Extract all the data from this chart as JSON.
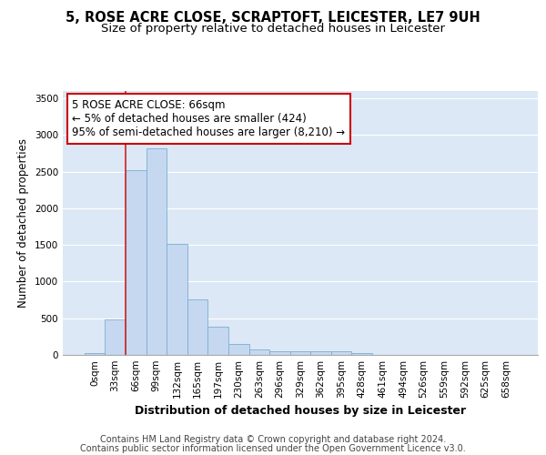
{
  "title1": "5, ROSE ACRE CLOSE, SCRAPTOFT, LEICESTER, LE7 9UH",
  "title2": "Size of property relative to detached houses in Leicester",
  "xlabel": "Distribution of detached houses by size in Leicester",
  "ylabel": "Number of detached properties",
  "categories": [
    "0sqm",
    "33sqm",
    "66sqm",
    "99sqm",
    "132sqm",
    "165sqm",
    "197sqm",
    "230sqm",
    "263sqm",
    "296sqm",
    "329sqm",
    "362sqm",
    "395sqm",
    "428sqm",
    "461sqm",
    "494sqm",
    "526sqm",
    "559sqm",
    "592sqm",
    "625sqm",
    "658sqm"
  ],
  "values": [
    25,
    490,
    2520,
    2820,
    1520,
    755,
    390,
    145,
    80,
    55,
    55,
    55,
    55,
    20,
    0,
    0,
    0,
    0,
    0,
    0,
    0
  ],
  "bar_color": "#c5d8f0",
  "bar_edge_color": "#7aadd4",
  "red_line_index": 2,
  "annotation_line1": "5 ROSE ACRE CLOSE: 66sqm",
  "annotation_line2": "← 5% of detached houses are smaller (424)",
  "annotation_line3": "95% of semi-detached houses are larger (8,210) →",
  "annotation_box_color": "#ffffff",
  "annotation_box_edge": "#cc0000",
  "ylim": [
    0,
    3600
  ],
  "yticks": [
    0,
    500,
    1000,
    1500,
    2000,
    2500,
    3000,
    3500
  ],
  "bg_color": "#dce8f5",
  "grid_color": "#ffffff",
  "footer1": "Contains HM Land Registry data © Crown copyright and database right 2024.",
  "footer2": "Contains public sector information licensed under the Open Government Licence v3.0.",
  "title1_fontsize": 10.5,
  "title2_fontsize": 9.5,
  "xlabel_fontsize": 9,
  "ylabel_fontsize": 8.5,
  "tick_fontsize": 7.5,
  "ann_fontsize": 8.5,
  "footer_fontsize": 7
}
